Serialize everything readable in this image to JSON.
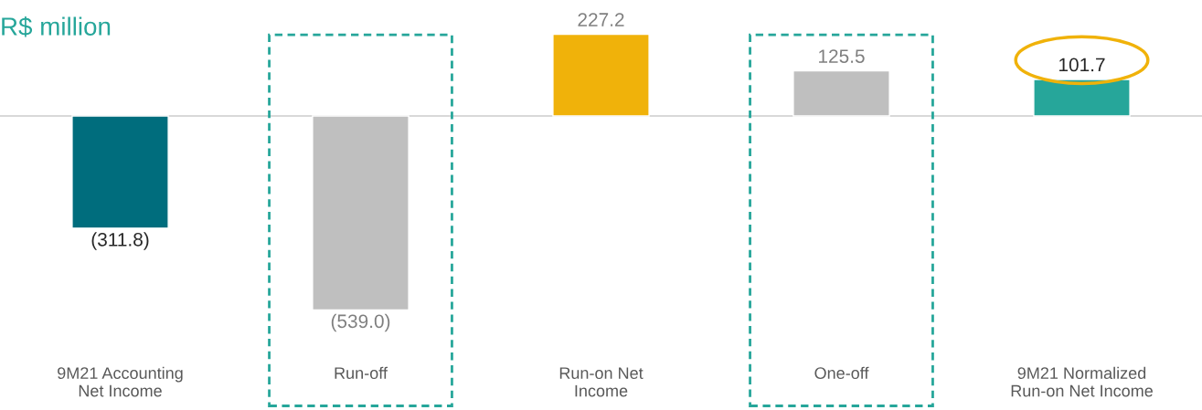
{
  "chart_data": {
    "type": "bar",
    "title": "R$ million",
    "categories": [
      "9M21 Accounting\nNet Income",
      "Run-off",
      "Run-on Net\nIncome",
      "One-off",
      "9M21 Normalized\nRun-on Net Income"
    ],
    "values": [
      -311.8,
      -539.0,
      227.2,
      125.5,
      101.7
    ],
    "colors": [
      "#006d7d",
      "#bfbfbf",
      "#f0b20a",
      "#bfbfbf",
      "#26a69a"
    ],
    "value_labels": [
      "(311.8)",
      "(539.0)",
      "227.2",
      "125.5",
      "101.7"
    ],
    "grid": false,
    "legend": false
  }
}
